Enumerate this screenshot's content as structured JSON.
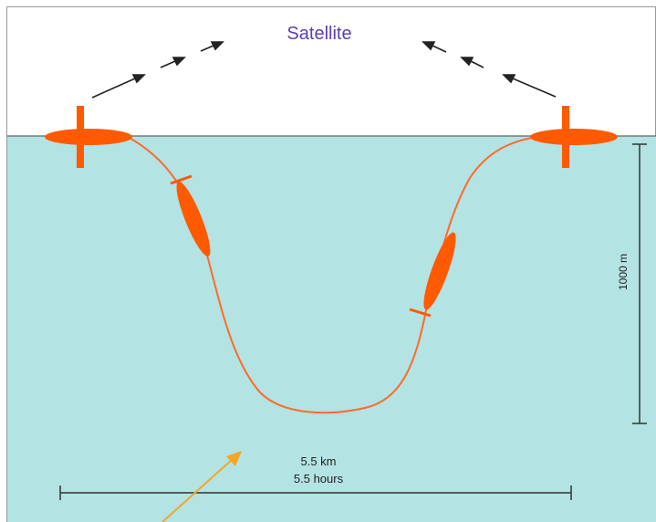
{
  "labels": {
    "satellite": "Satellite",
    "depth": "1000 m",
    "distance": "5.5 km",
    "duration": "5.5 hours"
  },
  "colors": {
    "sky": "#ffffff",
    "water": "#b3e3e3",
    "glider": "#ff5a00",
    "path": "#ff6a2a",
    "satellite_text": "#5b3fb0",
    "arrows": "#222222",
    "pointer_arrow": "#f5a623",
    "scale": "#333333"
  },
  "icons": {
    "surface_glider_left": "glider-surface-icon",
    "surface_glider_right": "glider-surface-icon",
    "diving_glider": "glider-dive-icon",
    "climbing_glider": "glider-climb-icon"
  }
}
